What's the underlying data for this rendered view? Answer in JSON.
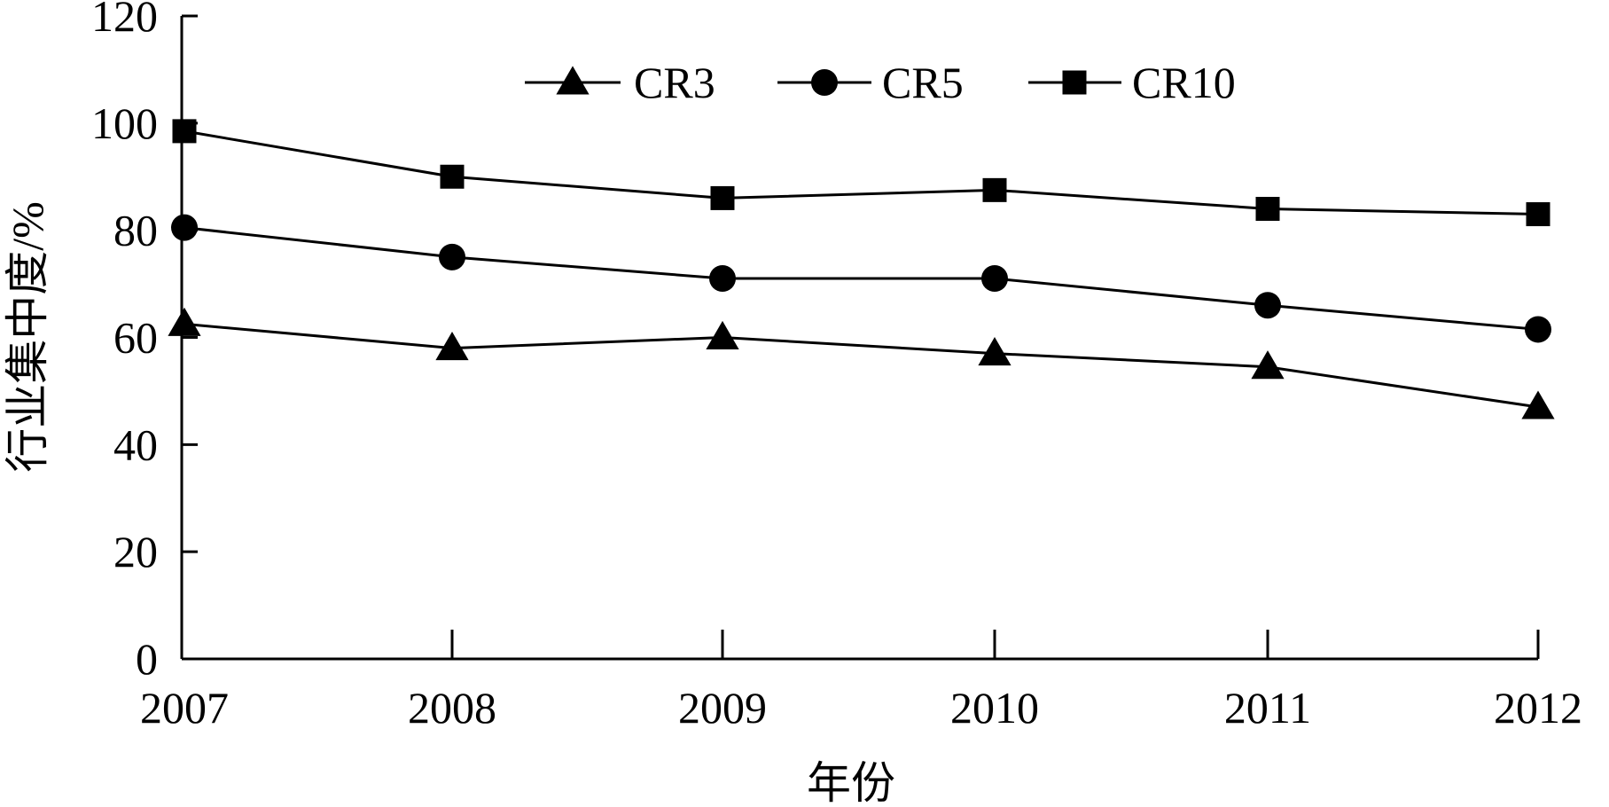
{
  "chart_data": {
    "type": "line",
    "title": "",
    "xlabel": "年份",
    "ylabel": "行业集中度/%",
    "categories": [
      "2007",
      "2008",
      "2009",
      "2010",
      "2011",
      "2012"
    ],
    "ylim": [
      0,
      120
    ],
    "yticks": [
      "0",
      "20",
      "40",
      "60",
      "80",
      "100",
      "120"
    ],
    "grid": false,
    "legend_position": "top",
    "series": [
      {
        "name": "CR3",
        "marker": "triangle",
        "color": "#000000",
        "values": [
          62.5,
          58,
          60,
          57,
          54.5,
          47
        ]
      },
      {
        "name": "CR5",
        "marker": "circle",
        "color": "#000000",
        "values": [
          80.5,
          75,
          71,
          71,
          66,
          61.5
        ]
      },
      {
        "name": "CR10",
        "marker": "square",
        "color": "#000000",
        "values": [
          98.5,
          90,
          86,
          87.5,
          84,
          83
        ]
      }
    ]
  }
}
